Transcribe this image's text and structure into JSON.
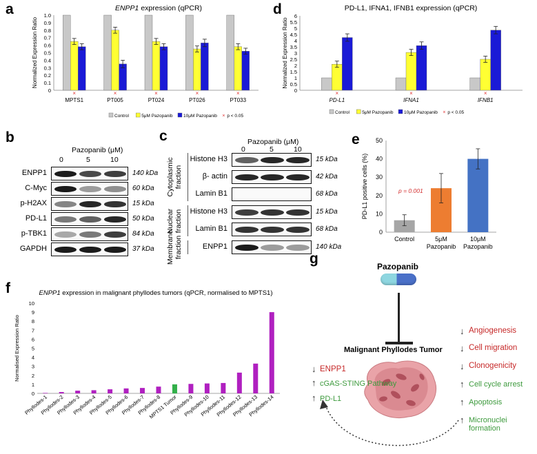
{
  "panels": {
    "a": {
      "letter": "a"
    },
    "b": {
      "letter": "b"
    },
    "c": {
      "letter": "c"
    },
    "d": {
      "letter": "d"
    },
    "e": {
      "letter": "e"
    },
    "f": {
      "letter": "f"
    },
    "g": {
      "letter": "g"
    }
  },
  "colors": {
    "control": "#c8c8c8",
    "pz5": "#ffff33",
    "pz10": "#1a1ad6",
    "star": "#e03030",
    "f_bar": "#b020c0",
    "f_highlight": "#33b04a",
    "e_control": "#a6a6a6",
    "e_5": "#ed7d31",
    "e_10": "#4472c4"
  },
  "chart_data": [
    {
      "id": "a",
      "type": "bar",
      "title_italic": "ENPP1",
      "title_rest": " expression (qPCR)",
      "ylabel": "Normalized Expression Ratio",
      "ylim": [
        0,
        1.0
      ],
      "yticks": [
        "0",
        "0.1",
        "0.2",
        "0.3",
        "0.4",
        "0.5",
        "0.6",
        "0.7",
        "0.8",
        "0.9",
        "1.0"
      ],
      "categories": [
        "MPTS1",
        "PT005",
        "PT024",
        "PT026",
        "PT033"
      ],
      "series": [
        {
          "name": "Control",
          "values": [
            1.0,
            1.0,
            1.0,
            1.0,
            1.0
          ],
          "errors": [
            0,
            0,
            0,
            0,
            0
          ]
        },
        {
          "name": "5μM Pazopanib",
          "values": [
            0.65,
            0.8,
            0.65,
            0.55,
            0.58
          ],
          "errors": [
            0.04,
            0.04,
            0.04,
            0.04,
            0.04
          ]
        },
        {
          "name": "10μM Pazopanib",
          "values": [
            0.58,
            0.35,
            0.58,
            0.63,
            0.52
          ],
          "errors": [
            0.04,
            0.05,
            0.04,
            0.05,
            0.04
          ]
        }
      ],
      "significance_marker": "×",
      "legend_sig": "p < 0.05"
    },
    {
      "id": "d",
      "type": "bar",
      "title": "PD-L1, IFNA1, IFNB1 expression (qPCR)",
      "ylabel": "Normalized Expression Ratio",
      "ylim": [
        0,
        6
      ],
      "yticks": [
        "0",
        "0.5",
        "1",
        "1.5",
        "2",
        "2.5",
        "3",
        "3.5",
        "4",
        "4.5",
        "5",
        "5.5",
        "6"
      ],
      "categories": [
        "PD-L1",
        "IFNA1",
        "IFNB1"
      ],
      "series": [
        {
          "name": "Control",
          "values": [
            1.0,
            1.0,
            1.0
          ],
          "errors": [
            0,
            0,
            0
          ]
        },
        {
          "name": "5μM Pazopanib",
          "values": [
            2.1,
            3.05,
            2.5
          ],
          "errors": [
            0.25,
            0.25,
            0.25
          ]
        },
        {
          "name": "10μM Pazopanib",
          "values": [
            4.25,
            3.6,
            4.85
          ],
          "errors": [
            0.3,
            0.3,
            0.3
          ]
        }
      ],
      "significance_marker": "×",
      "legend_sig": "p < 0.05"
    },
    {
      "id": "e",
      "type": "bar",
      "ylabel": "PD-L1 positive cells (%)",
      "ylim": [
        0,
        50
      ],
      "yticks": [
        "0",
        "10",
        "20",
        "30",
        "40",
        "50"
      ],
      "categories": [
        "Control",
        "5μM\nPazopanib",
        "10μM\nPazopanib"
      ],
      "category_lines": [
        [
          "Control"
        ],
        [
          "5μM",
          "Pazopanib"
        ],
        [
          "10μM",
          "Pazopanib"
        ]
      ],
      "values": [
        6.5,
        24,
        40
      ],
      "errors": [
        3,
        8,
        5.5
      ],
      "annotation": "p = 0.001"
    },
    {
      "id": "f",
      "type": "bar",
      "title_italic": "ENPP1",
      "title_rest": " expression in malignant phyllodes tumors (qPCR, normalised to MPTS1)",
      "ylabel": "Normalised Expression Ratio",
      "ylim": [
        0,
        10
      ],
      "yticks": [
        "0",
        "1",
        "2",
        "3",
        "4",
        "5",
        "6",
        "7",
        "8",
        "9",
        "10"
      ],
      "categories": [
        "Phyllodes-1",
        "Phyllodes-2",
        "Phyllodes-3",
        "Phyllodes-4",
        "Phyllodes-5",
        "Phyllodes-6",
        "Phyllodes-7",
        "Phyllodes-8",
        "MPTS1 Tumor",
        "Phyllodes-9",
        "Phyllodes-10",
        "Phyllodes-11",
        "Phyllodes-12",
        "Phyllodes-13",
        "Phyllodes-14"
      ],
      "values": [
        0.05,
        0.15,
        0.3,
        0.35,
        0.45,
        0.55,
        0.6,
        0.75,
        1.0,
        1.05,
        1.1,
        1.15,
        2.3,
        3.3,
        9.0
      ],
      "highlight_index": 8
    }
  ],
  "legend": {
    "control": "Control",
    "pz5": "5μM Pazopanib",
    "pz10": "10μM Pazopanib",
    "sig_marker": "×",
    "sig": "p < 0.05"
  },
  "blot_b": {
    "header": "Pazopanib (μM)",
    "lanes": [
      "0",
      "5",
      "10"
    ],
    "rows": [
      {
        "label": "ENPP1",
        "kda": "140 kDa",
        "intensity": [
          0.95,
          0.75,
          0.8
        ]
      },
      {
        "label": "C-Myc",
        "kda": "60 kDa",
        "intensity": [
          0.95,
          0.4,
          0.45
        ]
      },
      {
        "label": "p-H2AX",
        "kda": "15 kDa",
        "intensity": [
          0.5,
          0.9,
          0.85
        ]
      },
      {
        "label": "PD-L1",
        "kda": "50 kDa",
        "intensity": [
          0.55,
          0.65,
          0.9
        ]
      },
      {
        "label": "p-TBK1",
        "kda": "84 kDa",
        "intensity": [
          0.35,
          0.55,
          0.8
        ]
      },
      {
        "label": "GAPDH",
        "kda": "37 kDa",
        "intensity": [
          0.95,
          0.95,
          0.95
        ]
      }
    ]
  },
  "blot_c": {
    "header": "Pazopanib (μM)",
    "lanes": [
      "0",
      "5",
      "10"
    ],
    "fractions": [
      {
        "name": "Cytoplasmic fraction",
        "line1": "Cytoplasmic",
        "line2": "fraction",
        "rows": [
          {
            "label": "Histone H3",
            "kda": "15 kDa",
            "intensity": [
              0.65,
              0.9,
              0.9
            ]
          },
          {
            "label": "β- actin",
            "kda": "42 kDa",
            "intensity": [
              0.9,
              0.9,
              0.9
            ]
          },
          {
            "label": "Lamin B1",
            "kda": "68 kDa",
            "intensity": [
              0.0,
              0.0,
              0.0
            ]
          }
        ]
      },
      {
        "name": "Nuclear fraction",
        "line1": "Nuclear",
        "line2": "fraction",
        "rows": [
          {
            "label": "Histone H3",
            "kda": "15 kDa",
            "intensity": [
              0.8,
              0.85,
              0.85
            ]
          },
          {
            "label": "Lamin B1",
            "kda": "68 kDa",
            "intensity": [
              0.85,
              0.85,
              0.85
            ]
          }
        ]
      },
      {
        "name": "Membrane fraction",
        "line1": "Membrane",
        "line2": "fraction",
        "rows": [
          {
            "label": "ENPP1",
            "kda": "140 kDa",
            "intensity": [
              0.95,
              0.4,
              0.4
            ]
          }
        ]
      }
    ]
  },
  "schematic_g": {
    "drug": "Pazopanib",
    "tumor": "Malignant Phyllodes Tumor",
    "left": [
      {
        "dir": "down",
        "text": "ENPP1",
        "color": "red"
      },
      {
        "dir": "up",
        "text": "cGAS-STING Pathway",
        "color": "green"
      },
      {
        "dir": "up",
        "text": "PD-L1",
        "color": "green"
      }
    ],
    "right": [
      {
        "dir": "down",
        "text": "Angiogenesis",
        "color": "red"
      },
      {
        "dir": "down",
        "text": "Cell migration",
        "color": "red"
      },
      {
        "dir": "down",
        "text": "Clonogenicity",
        "color": "red"
      },
      {
        "dir": "up",
        "text": "Cell cycle arrest",
        "color": "green"
      },
      {
        "dir": "up",
        "text": "Apoptosis",
        "color": "green"
      },
      {
        "dir": "up",
        "text": "Micronuclei formation",
        "color": "green"
      }
    ]
  }
}
